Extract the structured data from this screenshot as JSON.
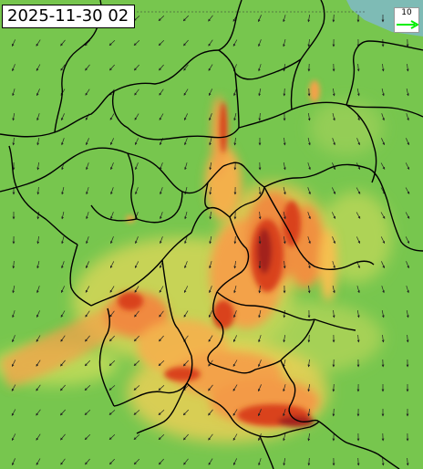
{
  "header": {
    "timestamp": "2025-11-30 02"
  },
  "legend": {
    "wind_reference_value": "10",
    "wind_arrow_color": "#00ee00"
  },
  "palette": {
    "background_low": "#6fc24a",
    "mid_yellow": "#f2e04a",
    "orange": "#f3a24a",
    "red": "#d9431e",
    "dark_red": "#a3221a",
    "border": "#000000",
    "sea": "#7fb8cf"
  }
}
